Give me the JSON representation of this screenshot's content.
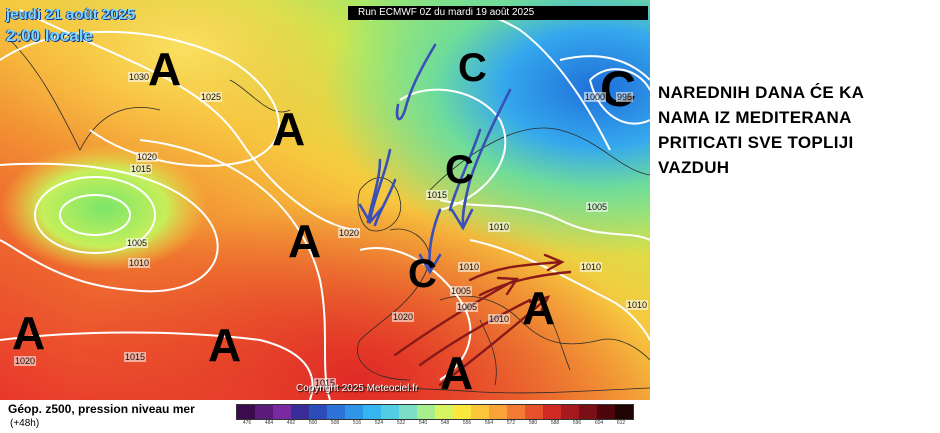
{
  "map": {
    "date": "jeudi 21 août 2025",
    "time": "2:00 locale",
    "run": "Run ECMWF 0Z du mardi 19 août 2025",
    "copyright": "Copyright 2025 Meteociel.fr",
    "legend_title": "Géop. z500, pression niveau mer",
    "legend_sub": "(+48h)",
    "annotation": "NAREDNIH DANA ĆE KA\nNAMA IZ MEDITERANA\nPRITICATI SVE TOPLIJI\nVAZDUH",
    "pressure_centers": [
      "A",
      "A",
      "A",
      "A",
      "A",
      "A",
      "A",
      "C",
      "C",
      "C",
      "C"
    ],
    "isobar_labels": [
      "1030",
      "1025",
      "1020",
      "1015",
      "1005",
      "1010",
      "1020",
      "1020",
      "1015",
      "1015",
      "1005",
      "1010",
      "1005",
      "1005",
      "1010",
      "1010",
      "1010",
      "1010",
      "1020",
      "1015",
      "1000",
      "995"
    ],
    "scale_ticks": [
      "476",
      "484",
      "492",
      "500",
      "508",
      "516",
      "524",
      "532",
      "540",
      "548",
      "556",
      "564",
      "572",
      "580",
      "588",
      "596",
      "604",
      "612"
    ],
    "scale_colors": [
      "#3c0b4e",
      "#5a1a78",
      "#7a2aa0",
      "#3a2d9a",
      "#2c4db8",
      "#2d72d6",
      "#2f95e6",
      "#36b6f0",
      "#53cde6",
      "#7adfc6",
      "#a6ef8c",
      "#d8f460",
      "#fbe83c",
      "#fcc63a",
      "#f9a238",
      "#f27a32",
      "#e6502c",
      "#d12a24",
      "#a51a1e",
      "#7a1016",
      "#4c070c",
      "#220304"
    ],
    "colors": {
      "warm_red": "#e8372b",
      "orange": "#f59a35",
      "yellow": "#f7e53d",
      "green": "#a7e85a",
      "cyan": "#5fd0ef",
      "blue": "#2c8ae0",
      "arrow_red": "#8a1a1a",
      "arrow_blue": "#3a4fb8"
    }
  }
}
